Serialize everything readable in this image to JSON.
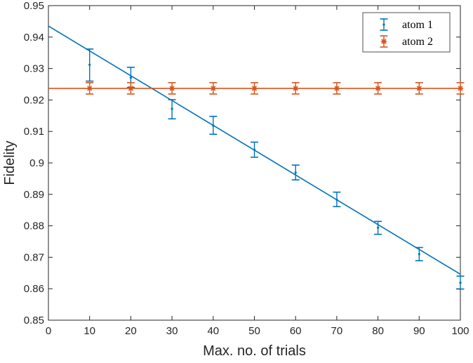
{
  "chart_data": {
    "type": "scatter",
    "title": "",
    "xlabel": "Max. no. of trials",
    "ylabel": "Fidelity",
    "xlim": [
      0,
      100
    ],
    "ylim": [
      0.85,
      0.95
    ],
    "x_ticks": [
      "0",
      "10",
      "20",
      "30",
      "40",
      "50",
      "60",
      "70",
      "80",
      "90",
      "100"
    ],
    "y_ticks": [
      "0.85",
      "0.86",
      "0.87",
      "0.88",
      "0.89",
      "0.9",
      "0.91",
      "0.92",
      "0.93",
      "0.94",
      "0.95"
    ],
    "grid": false,
    "legend_position": "top-right",
    "series": [
      {
        "name": "atom 1",
        "color": "#0072BD",
        "marker": "dot",
        "x": [
          10,
          20,
          30,
          40,
          50,
          60,
          70,
          80,
          90,
          100
        ],
        "y": [
          0.9312,
          0.9271,
          0.9172,
          0.9119,
          0.9042,
          0.8969,
          0.8883,
          0.8794,
          0.871,
          0.8619
        ],
        "err_low": [
          0.0052,
          0.0031,
          0.0032,
          0.0028,
          0.0024,
          0.0023,
          0.0022,
          0.0021,
          0.0021,
          0.002
        ],
        "err_high": [
          0.005,
          0.0033,
          0.0029,
          0.0029,
          0.0024,
          0.0024,
          0.0024,
          0.002,
          0.0021,
          0.0021
        ],
        "fit_line": {
          "x": [
            0,
            100
          ],
          "y": [
            0.9435,
            0.8646
          ]
        }
      },
      {
        "name": "atom 2",
        "color": "#D95319",
        "marker": "asterisk",
        "x": [
          10,
          20,
          30,
          40,
          50,
          60,
          70,
          80,
          90,
          100
        ],
        "y": [
          0.9237,
          0.9237,
          0.9237,
          0.9237,
          0.9237,
          0.9237,
          0.9237,
          0.9237,
          0.9237,
          0.9237
        ],
        "err_low": [
          0.0018,
          0.0018,
          0.0018,
          0.0018,
          0.0018,
          0.0018,
          0.0018,
          0.0018,
          0.0018,
          0.0018
        ],
        "err_high": [
          0.0018,
          0.0018,
          0.0018,
          0.0018,
          0.0018,
          0.0018,
          0.0018,
          0.0018,
          0.0018,
          0.0018
        ],
        "fit_line": {
          "x": [
            0,
            100
          ],
          "y": [
            0.9237,
            0.9237
          ]
        }
      }
    ]
  }
}
